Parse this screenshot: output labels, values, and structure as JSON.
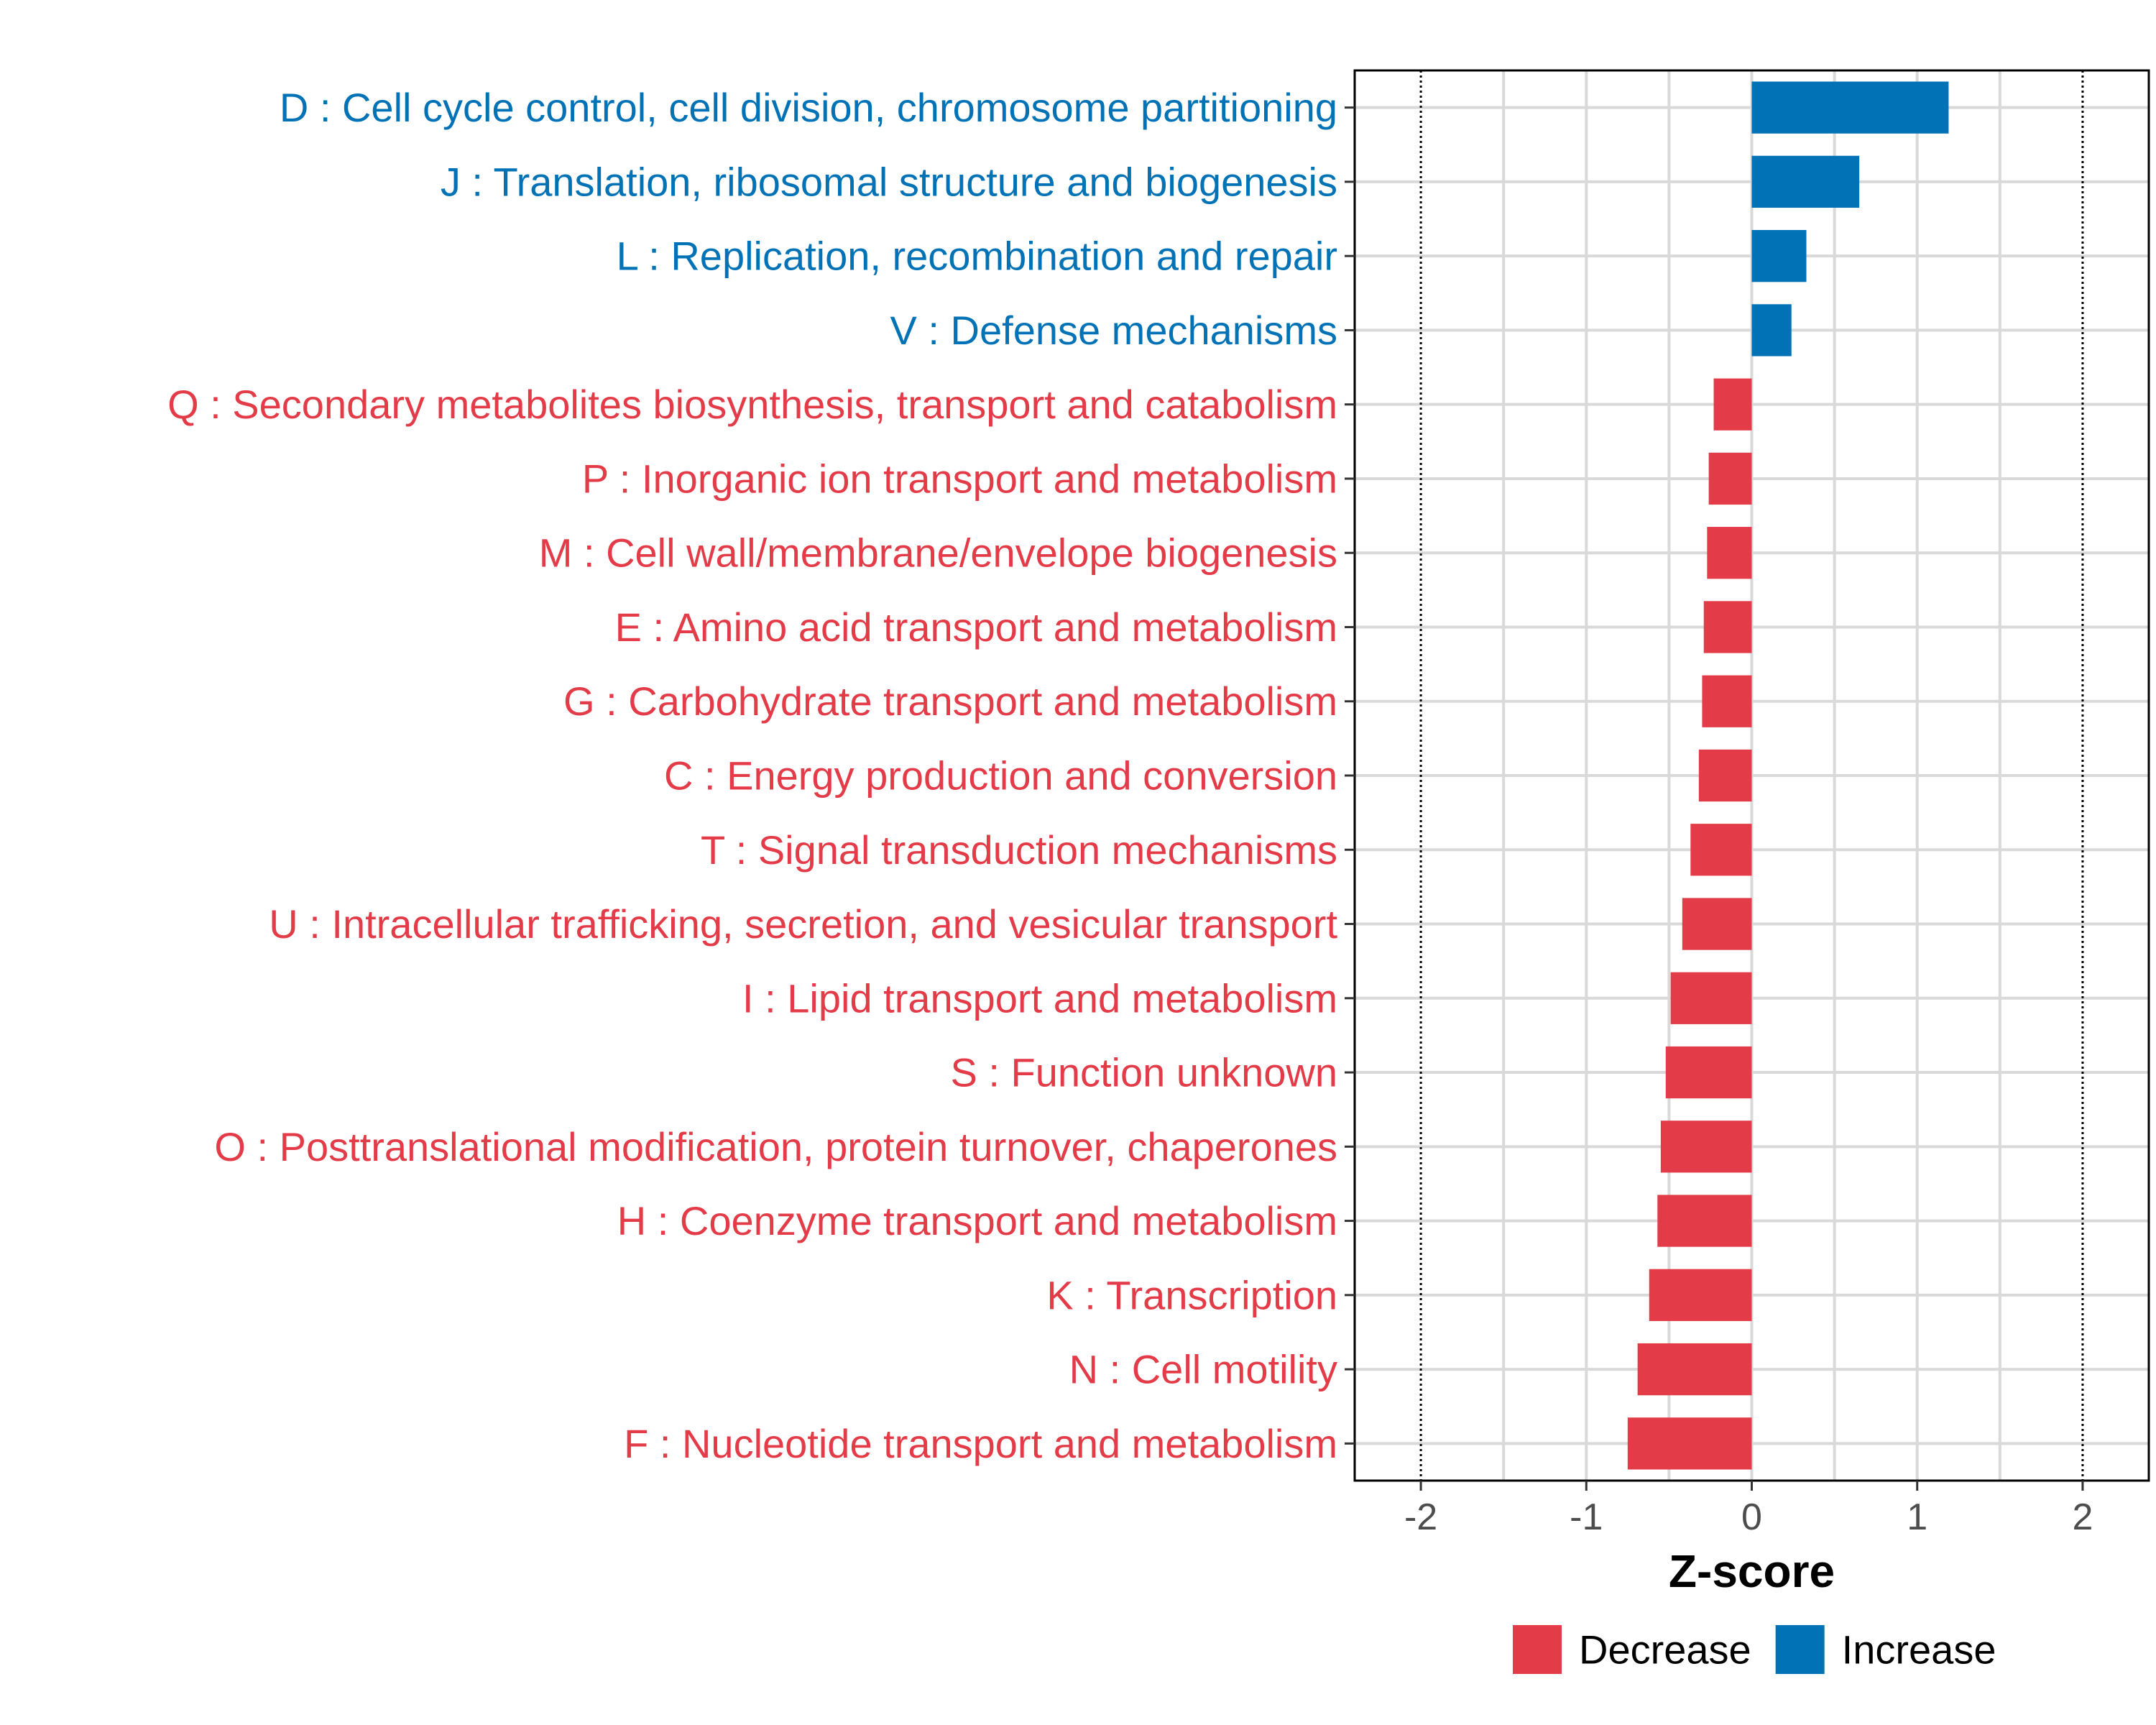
{
  "chart_data": {
    "type": "bar",
    "orientation": "horizontal",
    "title": "",
    "xlabel": "Z-score",
    "ylabel": "",
    "xlim": [
      -2.4,
      2.4
    ],
    "xticks": [
      -2,
      -1,
      0,
      1,
      2
    ],
    "xtick_labels": [
      "-2",
      "-1",
      "0",
      "1",
      "2"
    ],
    "reference_lines": [
      -2,
      2
    ],
    "grid": true,
    "legend_position": "bottom-right",
    "colors": {
      "Increase": "#0072b5",
      "Decrease": "#e33b47"
    },
    "legend": [
      {
        "label": "Decrease",
        "color": "#e33b47"
      },
      {
        "label": "Increase",
        "color": "#0072b5"
      }
    ],
    "categories": [
      "D : Cell cycle control, cell division, chromosome partitioning",
      "J : Translation, ribosomal structure and biogenesis",
      "L : Replication, recombination and repair",
      "V : Defense mechanisms",
      "Q : Secondary metabolites biosynthesis, transport and catabolism",
      "P : Inorganic ion transport and metabolism",
      "M : Cell wall/membrane/envelope biogenesis",
      "E : Amino acid transport and metabolism",
      "G : Carbohydrate transport and metabolism",
      "C : Energy production and conversion",
      "T : Signal transduction mechanisms",
      "U : Intracellular trafficking, secretion, and vesicular transport",
      "I : Lipid transport and metabolism",
      "S : Function unknown",
      "O : Posttranslational modification, protein turnover, chaperones",
      "H : Coenzyme transport and metabolism",
      "K : Transcription",
      "N : Cell motility",
      "F : Nucleotide transport and metabolism"
    ],
    "values": [
      1.19,
      0.65,
      0.33,
      0.24,
      -0.23,
      -0.26,
      -0.27,
      -0.29,
      -0.3,
      -0.32,
      -0.37,
      -0.42,
      -0.49,
      -0.52,
      -0.55,
      -0.57,
      -0.62,
      -0.69,
      -0.75
    ],
    "groups": [
      "Increase",
      "Increase",
      "Increase",
      "Increase",
      "Decrease",
      "Decrease",
      "Decrease",
      "Decrease",
      "Decrease",
      "Decrease",
      "Decrease",
      "Decrease",
      "Decrease",
      "Decrease",
      "Decrease",
      "Decrease",
      "Decrease",
      "Decrease",
      "Decrease"
    ]
  }
}
